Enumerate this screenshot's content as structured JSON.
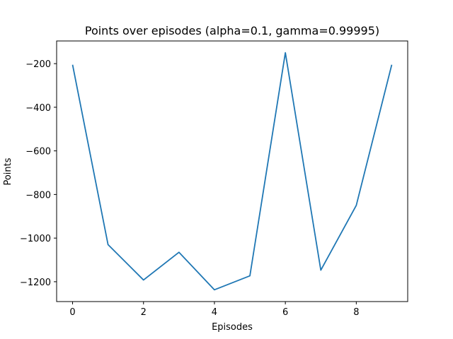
{
  "chart_data": {
    "type": "line",
    "title": "Points over episodes (alpha=0.1, gamma=0.99995)",
    "xlabel": "Episodes",
    "ylabel": "Points",
    "x": [
      0,
      1,
      2,
      3,
      4,
      5,
      6,
      7,
      8,
      9
    ],
    "series": [
      {
        "values": [
          -205,
          -1030,
          -1192,
          -1065,
          -1237,
          -1173,
          -150,
          -1147,
          -850,
          -205
        ],
        "color": "#1f77b4"
      }
    ],
    "xlim": [
      -0.45,
      9.45
    ],
    "ylim": [
      -1291,
      -96
    ],
    "xticks": [
      0,
      2,
      4,
      6,
      8
    ],
    "yticks": [
      -200,
      -400,
      -600,
      -800,
      -1000,
      -1200
    ],
    "grid": false,
    "legend": "none"
  }
}
